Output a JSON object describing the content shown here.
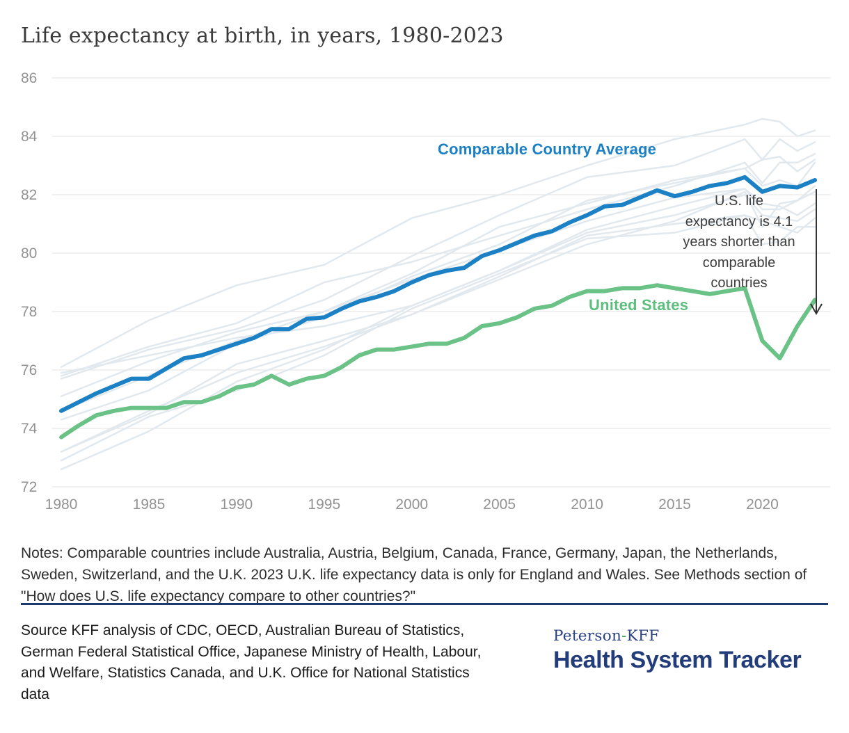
{
  "title": "Life expectancy at birth, in years, 1980-2023",
  "chart_data": {
    "type": "line",
    "title": "Life expectancy at birth, in years, 1980-2023",
    "xlabel": "",
    "ylabel": "",
    "xlim": [
      1980,
      2023
    ],
    "ylim": [
      72,
      86.5
    ],
    "grid": "horizontal",
    "x_ticks": [
      1980,
      1985,
      1990,
      1995,
      2000,
      2005,
      2010,
      2015,
      2020
    ],
    "y_ticks": [
      72,
      74,
      76,
      78,
      80,
      82,
      84,
      86
    ],
    "x": [
      1980,
      1981,
      1982,
      1983,
      1984,
      1985,
      1986,
      1987,
      1988,
      1989,
      1990,
      1991,
      1992,
      1993,
      1994,
      1995,
      1996,
      1997,
      1998,
      1999,
      2000,
      2001,
      2002,
      2003,
      2004,
      2005,
      2006,
      2007,
      2008,
      2009,
      2010,
      2011,
      2012,
      2013,
      2014,
      2015,
      2016,
      2017,
      2018,
      2019,
      2020,
      2021,
      2022,
      2023
    ],
    "series": [
      {
        "name": "Comparable Country Average",
        "color": "#1C80C4",
        "values": [
          74.6,
          74.9,
          75.2,
          75.45,
          75.7,
          75.7,
          76.05,
          76.4,
          76.5,
          76.7,
          76.9,
          77.1,
          77.4,
          77.4,
          77.75,
          77.8,
          78.1,
          78.35,
          78.5,
          78.7,
          79.0,
          79.25,
          79.4,
          79.5,
          79.9,
          80.1,
          80.35,
          80.6,
          80.75,
          81.05,
          81.3,
          81.6,
          81.65,
          81.9,
          82.15,
          81.95,
          82.1,
          82.3,
          82.4,
          82.6,
          82.1,
          82.3,
          82.25,
          82.5
        ]
      },
      {
        "name": "United States",
        "color": "#6AC286",
        "values": [
          73.7,
          74.1,
          74.45,
          74.6,
          74.7,
          74.7,
          74.7,
          74.9,
          74.9,
          75.1,
          75.4,
          75.5,
          75.8,
          75.5,
          75.7,
          75.8,
          76.1,
          76.5,
          76.7,
          76.7,
          76.8,
          76.9,
          76.9,
          77.1,
          77.5,
          77.6,
          77.8,
          78.1,
          78.2,
          78.5,
          78.7,
          78.7,
          78.8,
          78.8,
          78.9,
          78.8,
          78.7,
          78.6,
          78.7,
          78.8,
          77.0,
          76.4,
          77.5,
          78.4
        ]
      }
    ],
    "comparable_countries": [
      {
        "name": "Japan",
        "points": [
          [
            1980,
            76.1
          ],
          [
            1985,
            77.7
          ],
          [
            1990,
            78.9
          ],
          [
            1995,
            79.6
          ],
          [
            2000,
            81.2
          ],
          [
            2005,
            82.0
          ],
          [
            2010,
            83.0
          ],
          [
            2015,
            83.9
          ],
          [
            2019,
            84.4
          ],
          [
            2020,
            84.6
          ],
          [
            2021,
            84.5
          ],
          [
            2022,
            84.0
          ],
          [
            2023,
            84.2
          ]
        ]
      },
      {
        "name": "Switzerland",
        "points": [
          [
            1980,
            75.7
          ],
          [
            1985,
            76.7
          ],
          [
            1990,
            77.4
          ],
          [
            1995,
            78.4
          ],
          [
            2000,
            79.9
          ],
          [
            2005,
            81.3
          ],
          [
            2010,
            82.6
          ],
          [
            2015,
            83.0
          ],
          [
            2019,
            83.9
          ],
          [
            2020,
            83.2
          ],
          [
            2021,
            83.9
          ],
          [
            2022,
            83.5
          ],
          [
            2023,
            83.8
          ]
        ]
      },
      {
        "name": "Sweden",
        "points": [
          [
            1980,
            75.8
          ],
          [
            1985,
            76.8
          ],
          [
            1990,
            77.6
          ],
          [
            1995,
            79.0
          ],
          [
            2000,
            79.7
          ],
          [
            2005,
            80.6
          ],
          [
            2010,
            81.5
          ],
          [
            2015,
            82.3
          ],
          [
            2019,
            83.1
          ],
          [
            2020,
            82.4
          ],
          [
            2021,
            83.1
          ],
          [
            2022,
            83.1
          ],
          [
            2023,
            83.4
          ]
        ]
      },
      {
        "name": "Australia",
        "points": [
          [
            1980,
            74.6
          ],
          [
            1985,
            75.8
          ],
          [
            1990,
            77.0
          ],
          [
            1995,
            78.0
          ],
          [
            2000,
            79.3
          ],
          [
            2005,
            80.9
          ],
          [
            2010,
            81.7
          ],
          [
            2015,
            82.5
          ],
          [
            2019,
            82.9
          ],
          [
            2020,
            83.2
          ],
          [
            2021,
            83.3
          ],
          [
            2022,
            82.8
          ],
          [
            2023,
            83.2
          ]
        ]
      },
      {
        "name": "France",
        "points": [
          [
            1980,
            74.3
          ],
          [
            1985,
            75.3
          ],
          [
            1990,
            76.9
          ],
          [
            1995,
            77.8
          ],
          [
            2000,
            79.2
          ],
          [
            2005,
            80.3
          ],
          [
            2010,
            81.8
          ],
          [
            2015,
            82.4
          ],
          [
            2019,
            82.9
          ],
          [
            2020,
            82.3
          ],
          [
            2021,
            82.5
          ],
          [
            2022,
            82.3
          ],
          [
            2023,
            83.1
          ]
        ]
      },
      {
        "name": "Canada",
        "points": [
          [
            1980,
            75.1
          ],
          [
            1985,
            76.3
          ],
          [
            1990,
            77.3
          ],
          [
            1995,
            78.0
          ],
          [
            2000,
            79.1
          ],
          [
            2005,
            80.1
          ],
          [
            2010,
            81.1
          ],
          [
            2015,
            81.9
          ],
          [
            2019,
            82.2
          ],
          [
            2020,
            81.7
          ],
          [
            2021,
            81.6
          ],
          [
            2022,
            81.3
          ],
          [
            2023,
            81.7
          ]
        ]
      },
      {
        "name": "Netherlands",
        "points": [
          [
            1980,
            75.9
          ],
          [
            1985,
            76.5
          ],
          [
            1990,
            77.1
          ],
          [
            1995,
            77.5
          ],
          [
            2000,
            78.2
          ],
          [
            2005,
            79.4
          ],
          [
            2010,
            80.8
          ],
          [
            2015,
            81.6
          ],
          [
            2019,
            82.2
          ],
          [
            2020,
            81.5
          ],
          [
            2021,
            81.5
          ],
          [
            2022,
            81.8
          ],
          [
            2023,
            82.1
          ]
        ]
      },
      {
        "name": "Belgium",
        "points": [
          [
            1980,
            73.2
          ],
          [
            1985,
            74.5
          ],
          [
            1990,
            76.2
          ],
          [
            1995,
            77.0
          ],
          [
            2000,
            77.9
          ],
          [
            2005,
            79.1
          ],
          [
            2010,
            80.3
          ],
          [
            2015,
            81.1
          ],
          [
            2019,
            82.1
          ],
          [
            2020,
            80.9
          ],
          [
            2021,
            81.7
          ],
          [
            2022,
            81.8
          ],
          [
            2023,
            82.3
          ]
        ]
      },
      {
        "name": "Austria",
        "points": [
          [
            1980,
            72.6
          ],
          [
            1985,
            73.9
          ],
          [
            1990,
            75.6
          ],
          [
            1995,
            76.7
          ],
          [
            2000,
            78.2
          ],
          [
            2005,
            79.4
          ],
          [
            2010,
            80.7
          ],
          [
            2015,
            81.3
          ],
          [
            2019,
            82.0
          ],
          [
            2020,
            81.3
          ],
          [
            2021,
            81.2
          ],
          [
            2022,
            81.1
          ],
          [
            2023,
            81.5
          ]
        ]
      },
      {
        "name": "Germany",
        "points": [
          [
            1980,
            72.9
          ],
          [
            1985,
            74.4
          ],
          [
            1990,
            75.3
          ],
          [
            1995,
            76.5
          ],
          [
            2000,
            78.1
          ],
          [
            2005,
            79.3
          ],
          [
            2010,
            80.5
          ],
          [
            2015,
            80.7
          ],
          [
            2019,
            81.3
          ],
          [
            2020,
            81.1
          ],
          [
            2021,
            80.9
          ],
          [
            2022,
            80.7
          ],
          [
            2023,
            81.2
          ]
        ]
      },
      {
        "name": "U.K.",
        "points": [
          [
            1980,
            73.2
          ],
          [
            1985,
            74.6
          ],
          [
            1990,
            75.9
          ],
          [
            1995,
            76.8
          ],
          [
            2000,
            77.9
          ],
          [
            2005,
            79.2
          ],
          [
            2010,
            80.6
          ],
          [
            2015,
            81.0
          ],
          [
            2019,
            81.3
          ],
          [
            2020,
            80.3
          ],
          [
            2021,
            80.4
          ],
          [
            2022,
            80.9
          ],
          [
            2023,
            80.9
          ]
        ]
      }
    ],
    "annotation": {
      "lines": [
        "U.S. life",
        "expectancy is 4.1",
        "years shorter than",
        "comparable",
        "countries"
      ],
      "gap_years": 4.1
    },
    "legend_position": "inline-labels",
    "colors": {
      "grid": "#e3e3e3",
      "axis_text": "#929292",
      "background_lines": "#e2e9ee",
      "arrow": "#333333"
    }
  },
  "notes": "Notes: Comparable countries include Australia, Austria, Belgium, Canada, France, Germany, Japan, the Netherlands, Sweden, Switzerland, and the U.K. 2023 U.K. life expectancy data is only for England and Wales. See Methods section of \"How does U.S. life expectancy compare to other countries?\"",
  "source": "Source KFF analysis of CDC, OECD, Australian Bureau of Statistics, German Federal Statistical Office, Japanese Ministry of Health, Labour, and Welfare, Statistics Canada, and U.K. Office for National Statistics data",
  "logo": {
    "top_left": "Peterson",
    "hyphen": "-",
    "top_right": "KFF",
    "bottom": "Health System Tracker",
    "navy": "#233d7b",
    "green": "#3fa45b"
  }
}
